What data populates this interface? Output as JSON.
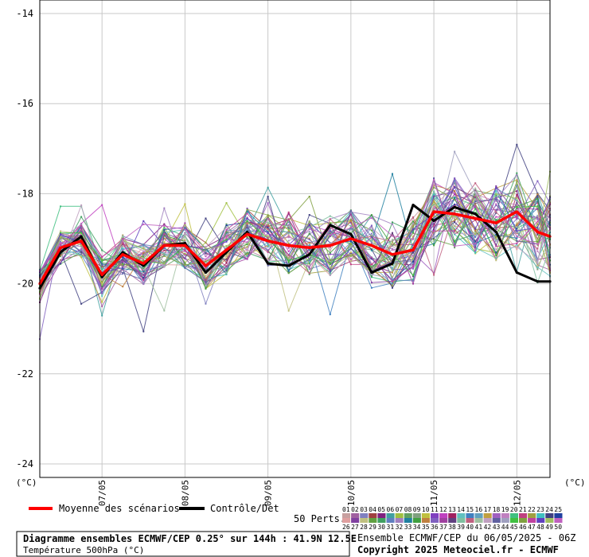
{
  "chart_data": {
    "type": "line",
    "title": "Diagramme ensembles ECMWF/CEP 0.25° sur 144h : 41.9N 12.5E",
    "subtitle": "Température 500hPa (°C)",
    "ylabel": "(°C)",
    "ylim": [
      -24.3,
      -13.7
    ],
    "yticks": [
      -14,
      -16,
      -18,
      -20,
      -22,
      -24
    ],
    "yticks_labels": [
      "-14",
      "-16",
      "-18",
      "-20",
      "-22",
      "-24"
    ],
    "xlim": [
      0,
      24.6
    ],
    "xticks": [
      3,
      7,
      11,
      15,
      19,
      23
    ],
    "xtick_labels": [
      "07/05",
      "08/05",
      "09/05",
      "10/05",
      "11/05",
      "12/05"
    ],
    "grid": true,
    "legend": {
      "mean_label": "Moyenne des scénarios",
      "control_label": "Contrôle/Det",
      "perts_label": "50 Perts."
    },
    "member_labels_row1": [
      "01",
      "02",
      "03",
      "04",
      "05",
      "06",
      "07",
      "08",
      "09",
      "10",
      "11",
      "12",
      "13",
      "14",
      "15",
      "16",
      "17",
      "18",
      "19",
      "20",
      "21",
      "22",
      "23",
      "24",
      "25"
    ],
    "member_labels_row2": [
      "26",
      "27",
      "28",
      "29",
      "30",
      "31",
      "32",
      "33",
      "34",
      "35",
      "36",
      "37",
      "38",
      "39",
      "40",
      "41",
      "42",
      "43",
      "44",
      "45",
      "46",
      "47",
      "48",
      "49",
      "50"
    ],
    "member_colors": [
      "#c8a0a0",
      "#a060a0",
      "#8080c0",
      "#a04040",
      "#802080",
      "#40a0a0",
      "#a0c040",
      "#60a060",
      "#80a080",
      "#c0c040",
      "#8040c0",
      "#c040c0",
      "#a02060",
      "#60c0c0",
      "#4080c0",
      "#60a0c0",
      "#c0a040",
      "#a060c0",
      "#c080c0",
      "#40c080",
      "#c04080",
      "#a0a040",
      "#40c0c0",
      "#404080",
      "#2040a0",
      "#e0a0a0",
      "#8040a0",
      "#c0c080",
      "#60a040",
      "#40a060",
      "#6080c0",
      "#a080c0",
      "#2080a0",
      "#40a040",
      "#c08040",
      "#8060c0",
      "#a040a0",
      "#604080",
      "#80c0a0",
      "#c06080",
      "#a0c0a0",
      "#c0a0c0",
      "#6060a0",
      "#a0a0c0",
      "#40c040",
      "#80a040",
      "#c040a0",
      "#6040c0",
      "#a0c060",
      "#c060c0"
    ],
    "mean_color": "#ff0000",
    "control_color": "#000000",
    "series": [
      {
        "name": "Moyenne des scénarios",
        "x": [
          0,
          1,
          2,
          3,
          4,
          5,
          6,
          7,
          8,
          9,
          10,
          11,
          12,
          13,
          14,
          15,
          16,
          17,
          18,
          19,
          20,
          21,
          22,
          23,
          24,
          24.6
        ],
        "values": [
          -20.0,
          -19.2,
          -19.05,
          -19.8,
          -19.35,
          -19.55,
          -19.15,
          -19.15,
          -19.6,
          -19.25,
          -18.9,
          -19.05,
          -19.15,
          -19.2,
          -19.15,
          -19.0,
          -19.15,
          -19.35,
          -19.25,
          -18.4,
          -18.45,
          -18.55,
          -18.65,
          -18.4,
          -18.85,
          -18.95
        ]
      },
      {
        "name": "Contrôle/Det",
        "x": [
          0,
          1,
          2,
          3,
          4,
          5,
          6,
          7,
          8,
          9,
          10,
          11,
          12,
          13,
          14,
          15,
          16,
          17,
          18,
          19,
          20,
          21,
          22,
          23,
          24,
          24.6
        ],
        "values": [
          -20.1,
          -19.3,
          -18.95,
          -19.85,
          -19.3,
          -19.6,
          -19.15,
          -19.1,
          -19.75,
          -19.3,
          -18.85,
          -19.55,
          -19.6,
          -19.35,
          -18.7,
          -18.9,
          -19.75,
          -19.55,
          -18.25,
          -18.6,
          -18.3,
          -18.45,
          -18.85,
          -19.75,
          -19.95,
          -19.95
        ]
      }
    ]
  },
  "footer": {
    "left_title": "Diagramme ensembles ECMWF/CEP 0.25° sur 144h : 41.9N 12.5E",
    "left_subtitle": "Température 500hPa (°C)",
    "right_line1": "Ensemble ECMWF/CEP du 06/05/2025 - 06Z",
    "right_line2": "Copyright 2025 Meteociel.fr - ECMWF"
  }
}
